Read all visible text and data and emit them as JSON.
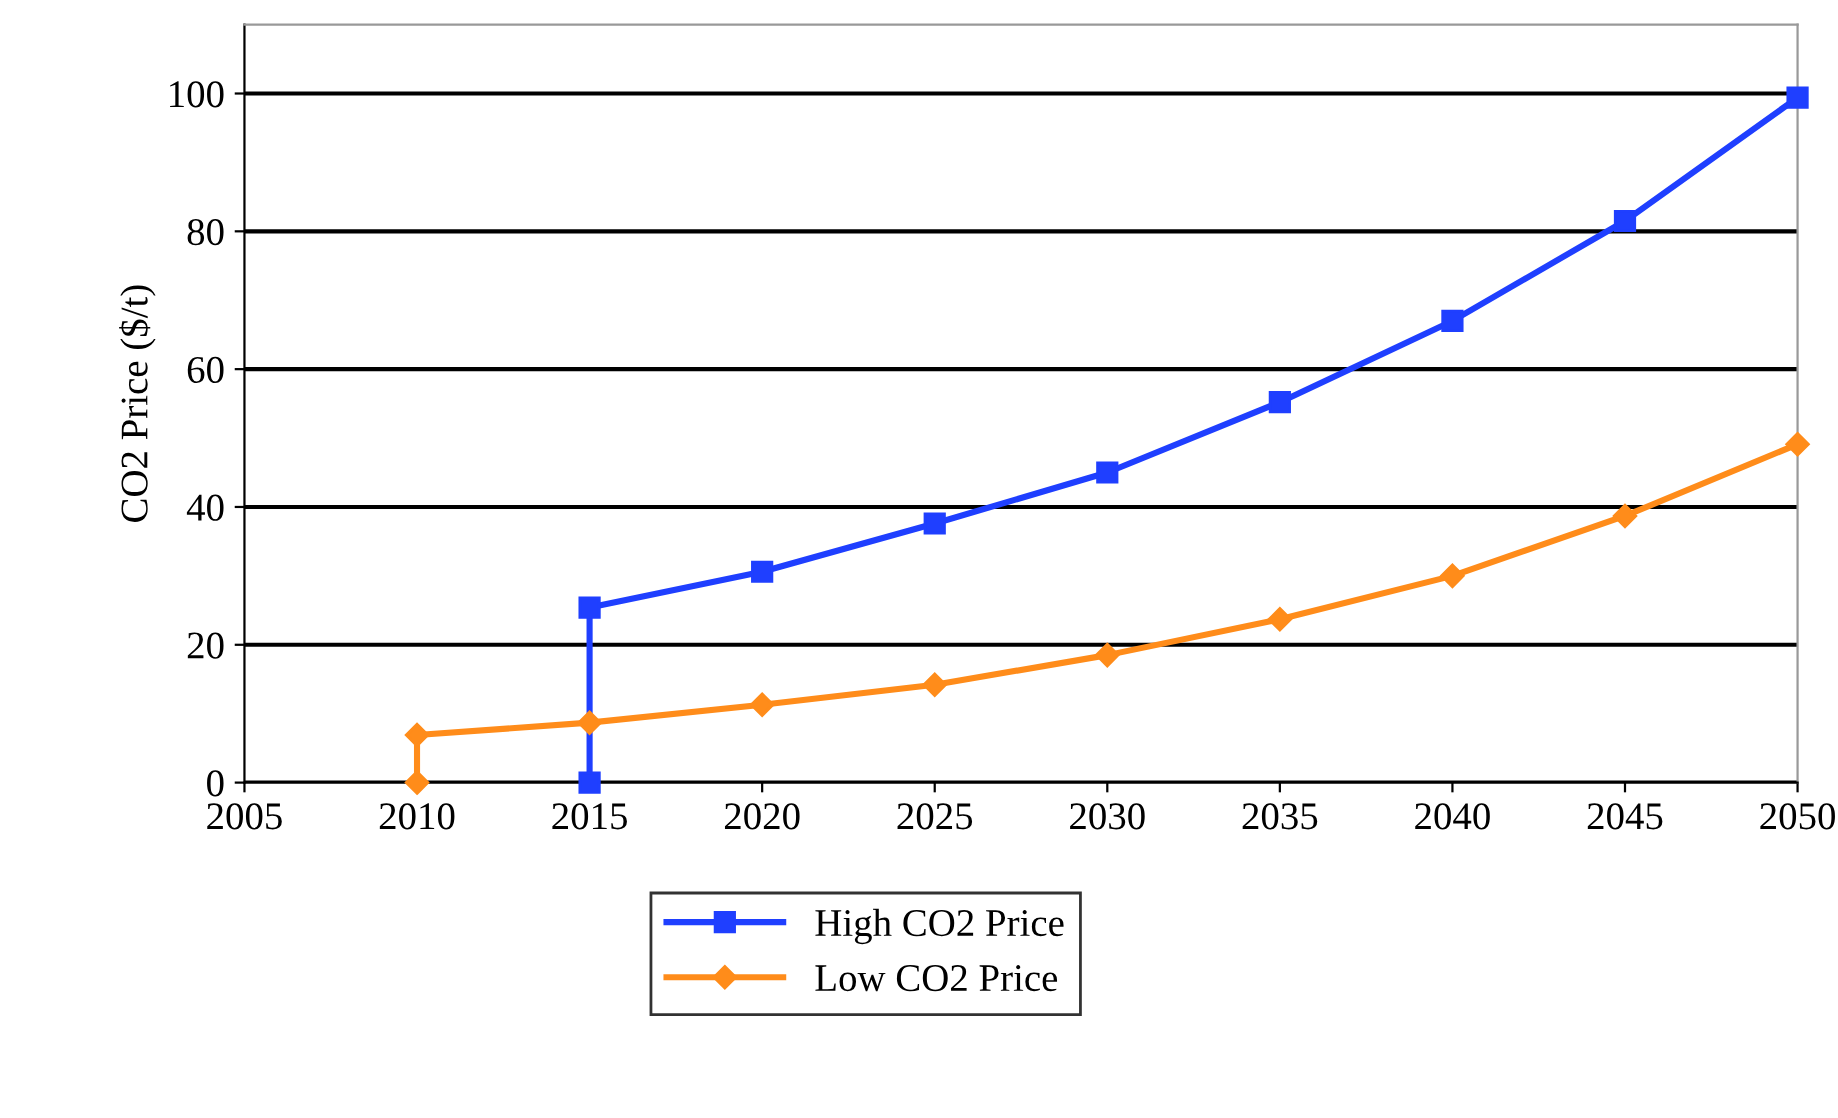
{
  "chart_data": {
    "type": "line",
    "ylabel": "CO2 Price ($/t)",
    "series": [
      {
        "name": "High CO2 Price",
        "color": "#1f3fff",
        "marker": "square",
        "x": [
          2015,
          2015,
          2020,
          2025,
          2030,
          2035,
          2040,
          2045,
          2050
        ],
        "values": [
          0,
          25.4,
          30.6,
          37.6,
          45,
          55.2,
          67,
          81.5,
          99.4
        ]
      },
      {
        "name": "Low CO2 Price",
        "color": "#ff8c1a",
        "marker": "diamond",
        "x": [
          2010,
          2010,
          2015,
          2020,
          2025,
          2030,
          2035,
          2040,
          2045,
          2050
        ],
        "values": [
          0,
          6.9,
          8.7,
          11.3,
          14.2,
          18.5,
          23.7,
          30,
          38.7,
          49.1
        ]
      }
    ],
    "xlim": [
      2005,
      2050
    ],
    "ylim": [
      0,
      110
    ],
    "xticks": [
      2005,
      2010,
      2015,
      2020,
      2025,
      2030,
      2035,
      2040,
      2045,
      2050
    ],
    "yticks": [
      0,
      20,
      40,
      60,
      80,
      100
    ],
    "grid": "y",
    "legend": "bottom",
    "line_style": "solid"
  }
}
